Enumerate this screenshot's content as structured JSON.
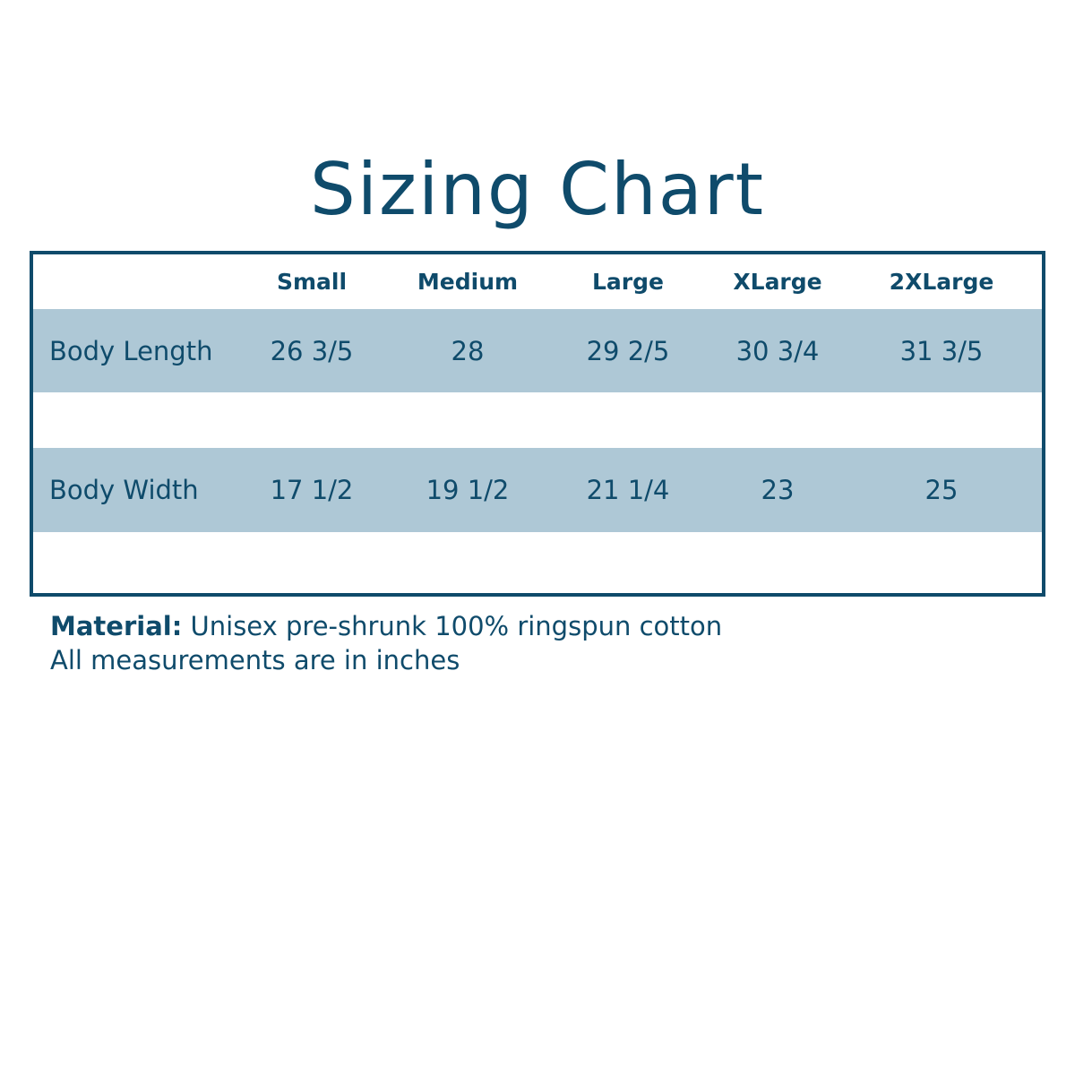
{
  "title": "Sizing Chart",
  "colors": {
    "primary": "#0f4b6b",
    "band": "#aec8d6"
  },
  "table": {
    "columns": [
      "Small",
      "Medium",
      "Large",
      "XLarge",
      "2XLarge"
    ],
    "rows": [
      {
        "label": "Body Length",
        "values": [
          "26 3/5",
          "28",
          "29 2/5",
          "30 3/4",
          "31 3/5"
        ]
      },
      {
        "label": "Body Width",
        "values": [
          "17 1/2",
          "19 1/2",
          "21 1/4",
          "23",
          "25"
        ]
      }
    ]
  },
  "notes": {
    "material_label": "Material:",
    "material_text": "Unisex pre-shrunk 100% ringspun cotton",
    "units": "All measurements are in inches"
  }
}
